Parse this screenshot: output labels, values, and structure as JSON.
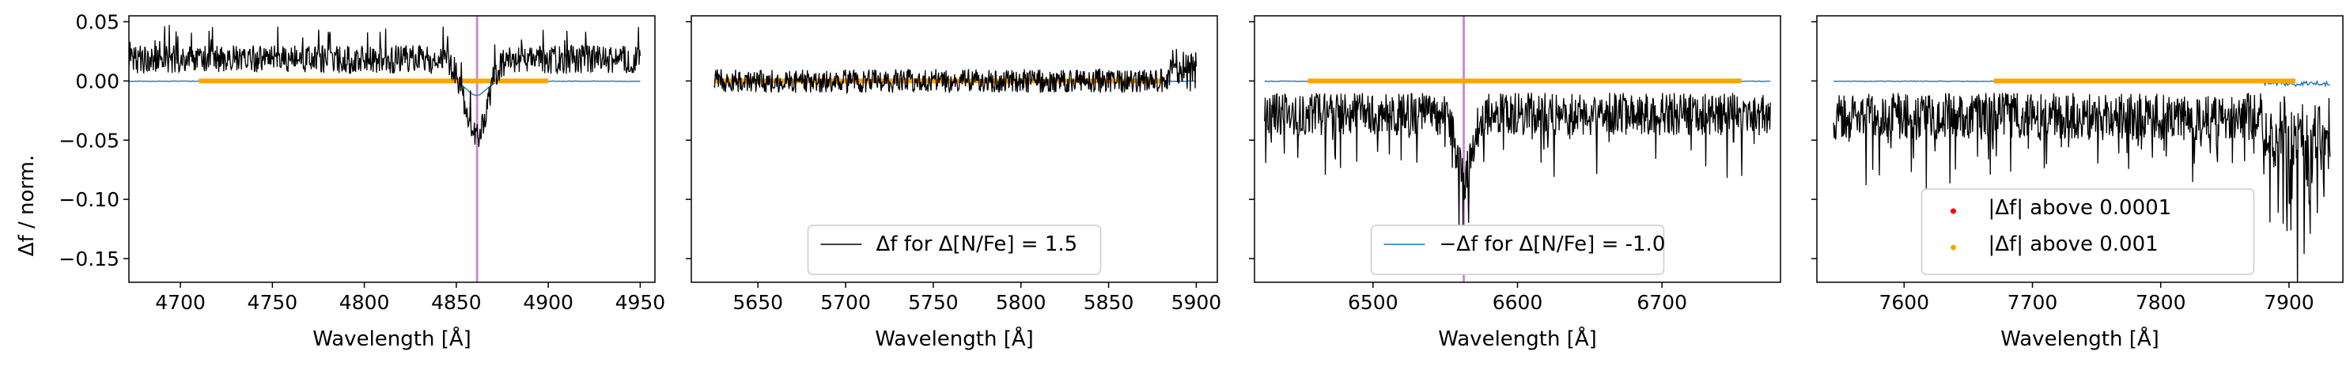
{
  "figure": {
    "y_label": "Δf / norm.",
    "x_label": "Wavelength [Å]"
  },
  "chart_data": [
    {
      "type": "line",
      "panel": 1,
      "xlim": [
        4672,
        4958
      ],
      "ylim": [
        -0.17,
        0.055
      ],
      "xticks": [
        4700,
        4750,
        4800,
        4850,
        4900,
        4950
      ],
      "yticks": [
        0.05,
        0.0,
        -0.05,
        -0.1,
        -0.15
      ],
      "ytick_labels": [
        "0.05",
        "0.00",
        "−0.05",
        "−0.10",
        "−0.15"
      ],
      "xlabel": "Wavelength [Å]",
      "ylabel": "Δf / norm.",
      "vline": 4861.3,
      "diff_range": [
        4672,
        4950
      ],
      "diff_base": 0.018,
      "diff_noise": 0.012,
      "diff_dip": {
        "center": 4861,
        "depth": 0.065,
        "width": 6
      },
      "neg_range": [
        4672,
        4950
      ],
      "neg_dip": {
        "center": 4861,
        "depth": 0.012,
        "width": 5
      },
      "orange_range": [
        4710,
        4900
      ],
      "series": [
        {
          "name": "Δf for Δ[N/Fe] = 1.5",
          "color": "#000000"
        },
        {
          "name": "−Δf for Δ[N/Fe] = -1.0",
          "color": "#1f77b4"
        },
        {
          "name": "|Δf| above 0.0001",
          "color": "#ff0000"
        },
        {
          "name": "|Δf| above 0.001",
          "color": "#ffa500"
        }
      ]
    },
    {
      "type": "line",
      "panel": 2,
      "xlim": [
        5612,
        5912
      ],
      "ylim": [
        -0.17,
        0.055
      ],
      "xticks": [
        5650,
        5700,
        5750,
        5800,
        5850,
        5900
      ],
      "xlabel": "Wavelength [Å]",
      "diff_range": [
        5625,
        5900
      ],
      "diff_base": 0.0,
      "diff_noise": 0.01,
      "neg_range": [
        5625,
        5900
      ],
      "orange_range": [
        5625,
        5880
      ],
      "legend": {
        "label": "Δf for Δ[N/Fe] = 1.5",
        "color": "#000000"
      }
    },
    {
      "type": "line",
      "panel": 3,
      "xlim": [
        6418,
        6782
      ],
      "ylim": [
        -0.17,
        0.055
      ],
      "xticks": [
        6500,
        6600,
        6700
      ],
      "xlabel": "Wavelength [Å]",
      "vline": 6562.8,
      "diff_range": [
        6425,
        6775
      ],
      "diff_base": -0.028,
      "diff_noise": 0.018,
      "diff_dip": {
        "center": 6563,
        "depth": 0.055,
        "width": 5
      },
      "neg_range": [
        6425,
        6775
      ],
      "orange_range": [
        6455,
        6755
      ],
      "legend": {
        "label": "−Δf for Δ[N/Fe] = -1.0",
        "color": "#1f77b4"
      }
    },
    {
      "type": "line",
      "panel": 4,
      "xlim": [
        7532,
        7942
      ],
      "ylim": [
        -0.17,
        0.055
      ],
      "xticks": [
        7600,
        7700,
        7800,
        7900
      ],
      "xlabel": "Wavelength [Å]",
      "diff_range": [
        7545,
        7932
      ],
      "diff_base": -0.03,
      "diff_noise": 0.02,
      "telluric": [
        7880,
        7932
      ],
      "neg_range": [
        7545,
        7932
      ],
      "orange_range": [
        7670,
        7905
      ],
      "legend": [
        {
          "label": "|Δf| above 0.0001",
          "color": "#ff0000"
        },
        {
          "label": "|Δf| above 0.001",
          "color": "#ffa500"
        }
      ]
    }
  ]
}
